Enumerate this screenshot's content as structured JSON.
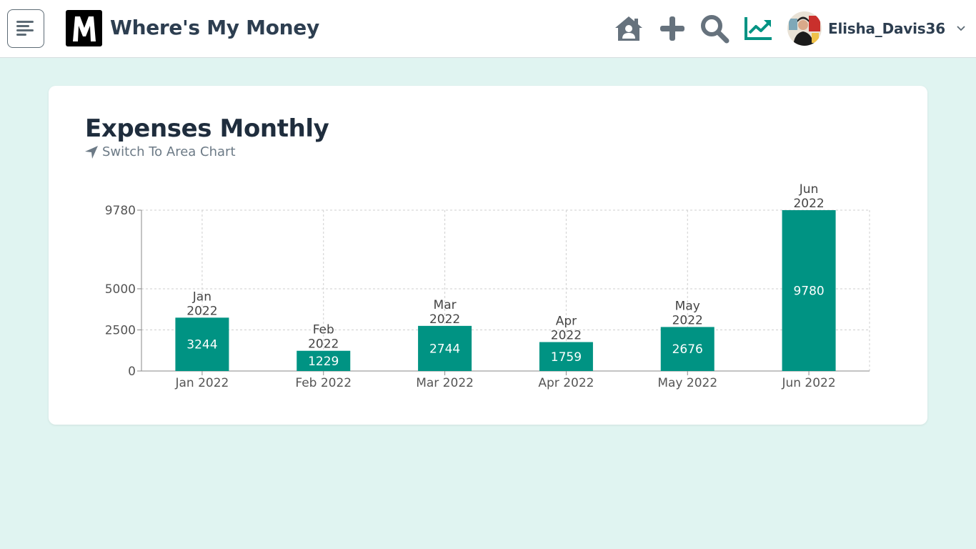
{
  "header": {
    "app_title": "Where's My Money",
    "logo_letter": "M",
    "username": "Elisha_Davis36"
  },
  "icons": {
    "menu": "menu-icon",
    "home": "home-icon",
    "add": "plus-icon",
    "search": "search-icon",
    "stats": "trending-up-icon",
    "caret": "chevron-down-icon"
  },
  "card": {
    "title": "Expenses Monthly",
    "switch_label": "Switch To Area Chart"
  },
  "colors": {
    "accent": "#009383",
    "nav_icon": "#66727d",
    "background": "#e0f4f1",
    "title": "#2d3e50"
  },
  "chart_data": {
    "type": "bar",
    "categories": [
      "Jan 2022",
      "Feb 2022",
      "Mar 2022",
      "Apr 2022",
      "May 2022",
      "Jun 2022"
    ],
    "top_labels": [
      [
        "Jan",
        "2022"
      ],
      [
        "Feb",
        "2022"
      ],
      [
        "Mar",
        "2022"
      ],
      [
        "Apr",
        "2022"
      ],
      [
        "May",
        "2022"
      ],
      [
        "Jun",
        "2022"
      ]
    ],
    "values": [
      3244,
      1229,
      2744,
      1759,
      2676,
      9780
    ],
    "ylim": [
      0,
      9780
    ],
    "yticks": [
      0,
      2500,
      5000,
      9780
    ],
    "grid": true,
    "bar_color": "#009383",
    "title": "",
    "xlabel": "",
    "ylabel": ""
  }
}
